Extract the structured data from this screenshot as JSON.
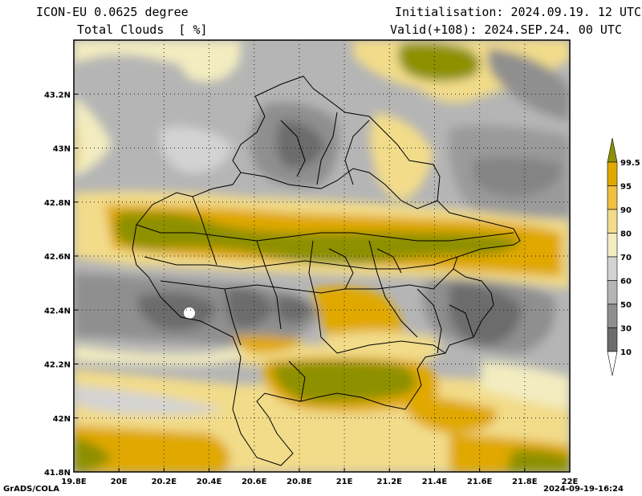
{
  "header": {
    "model": "ICON-EU 0.0625 degree",
    "variable": "Total Clouds  [ %]",
    "init": "Initialisation: 2024.09.19. 12 UTC",
    "valid": "Valid(+108): 2024.SEP.24. 00 UTC"
  },
  "map": {
    "lon_ticks": [
      "19.8E",
      "20E",
      "20.2E",
      "20.4E",
      "20.6E",
      "20.8E",
      "21E",
      "21.2E",
      "21.4E",
      "21.6E",
      "21.8E",
      "22E"
    ],
    "lat_ticks": [
      "43.2N",
      "43N",
      "42.8N",
      "42.6N",
      "42.4N",
      "42.2N",
      "42N",
      "41.8N"
    ],
    "lon_range": [
      19.8,
      22.0
    ],
    "lat_range": [
      41.8,
      43.4
    ]
  },
  "colorbar": {
    "labels": [
      "99.5",
      "95",
      "90",
      "80",
      "70",
      "60",
      "50",
      "30",
      "10"
    ],
    "colors": [
      "#8e9000",
      "#e0a800",
      "#f0c040",
      "#f2dc8a",
      "#f2ecc0",
      "#d3d3d3",
      "#b5b5b5",
      "#8f8f8f",
      "#6c6c6c",
      "#ffffff"
    ]
  },
  "footer": {
    "left": "GrADS/COLA",
    "right": "2024-09-19-16:24"
  }
}
